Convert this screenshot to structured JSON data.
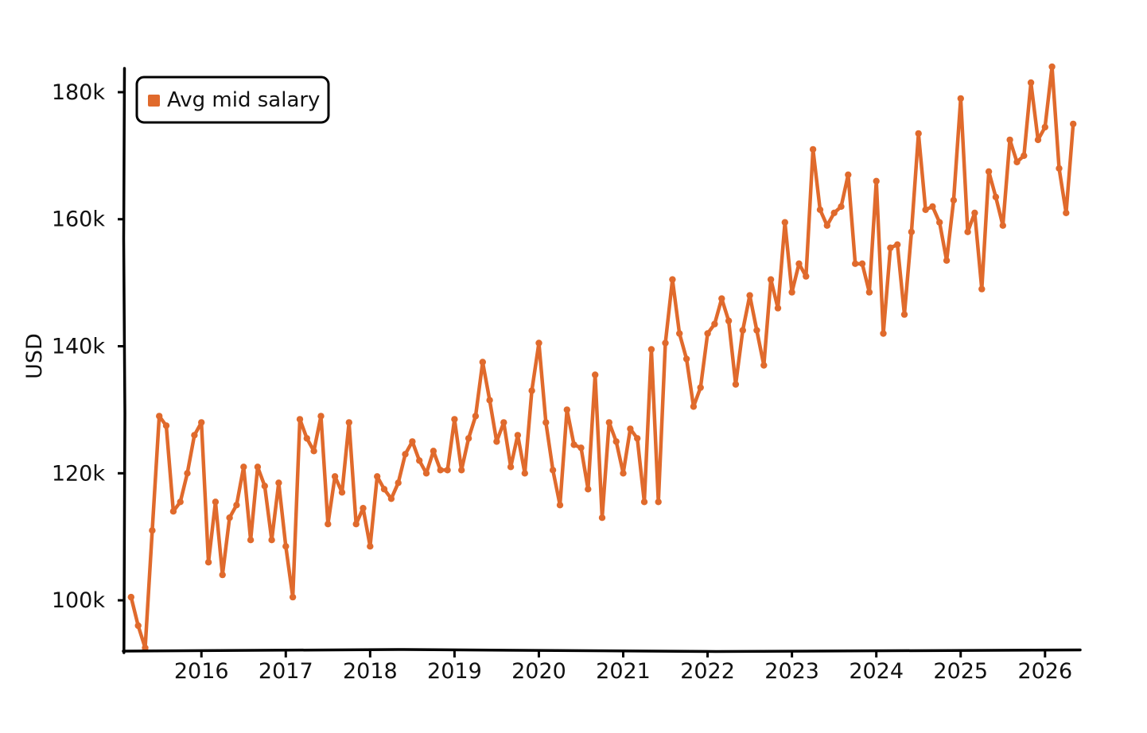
{
  "chart_data": {
    "type": "line",
    "title": "",
    "xlabel": "",
    "ylabel": "USD",
    "x_axis": {
      "type": "date",
      "range": [
        "2015-02",
        "2026-06"
      ],
      "tick_values": [
        "2016-01",
        "2017-01",
        "2018-01",
        "2019-01",
        "2020-01",
        "2021-01",
        "2022-01",
        "2023-01",
        "2024-01",
        "2025-01",
        "2026-01"
      ],
      "tick_labels": [
        "2016",
        "2017",
        "2018",
        "2019",
        "2020",
        "2021",
        "2022",
        "2023",
        "2024",
        "2025",
        "2026"
      ]
    },
    "y_axis": {
      "range": [
        92000,
        184000
      ],
      "tick_values": [
        100000,
        120000,
        140000,
        160000,
        180000
      ],
      "tick_labels": [
        "100k",
        "120k",
        "140k",
        "160k",
        "180k"
      ]
    },
    "grid": false,
    "legend": {
      "placement": "top-left",
      "entries": [
        "Avg mid salary"
      ]
    },
    "series": [
      {
        "name": "Avg mid salary",
        "color": "#e06a2c",
        "x": [
          "2015-03",
          "2015-04",
          "2015-05",
          "2015-06",
          "2015-07",
          "2015-08",
          "2015-09",
          "2015-10",
          "2015-11",
          "2015-12",
          "2016-01",
          "2016-02",
          "2016-03",
          "2016-04",
          "2016-05",
          "2016-06",
          "2016-07",
          "2016-08",
          "2016-09",
          "2016-10",
          "2016-11",
          "2016-12",
          "2017-01",
          "2017-02",
          "2017-03",
          "2017-04",
          "2017-05",
          "2017-06",
          "2017-07",
          "2017-08",
          "2017-09",
          "2017-10",
          "2017-11",
          "2017-12",
          "2018-01",
          "2018-02",
          "2018-03",
          "2018-04",
          "2018-05",
          "2018-06",
          "2018-07",
          "2018-08",
          "2018-09",
          "2018-10",
          "2018-11",
          "2018-12",
          "2019-01",
          "2019-02",
          "2019-03",
          "2019-04",
          "2019-05",
          "2019-06",
          "2019-07",
          "2019-08",
          "2019-09",
          "2019-10",
          "2019-11",
          "2019-12",
          "2020-01",
          "2020-02",
          "2020-03",
          "2020-04",
          "2020-05",
          "2020-06",
          "2020-07",
          "2020-08",
          "2020-09",
          "2020-10",
          "2020-11",
          "2020-12",
          "2021-01",
          "2021-02",
          "2021-03",
          "2021-04",
          "2021-05",
          "2021-06",
          "2021-07",
          "2021-08",
          "2021-09",
          "2021-10",
          "2021-11",
          "2021-12",
          "2022-01",
          "2022-02",
          "2022-03",
          "2022-04",
          "2022-05",
          "2022-06",
          "2022-07",
          "2022-08",
          "2022-09",
          "2022-10",
          "2022-11",
          "2022-12",
          "2023-01",
          "2023-02",
          "2023-03",
          "2023-04",
          "2023-05",
          "2023-06",
          "2023-07",
          "2023-08",
          "2023-09",
          "2023-10",
          "2023-11",
          "2023-12",
          "2024-01",
          "2024-02",
          "2024-03",
          "2024-04",
          "2024-05",
          "2024-06",
          "2024-07",
          "2024-08",
          "2024-09",
          "2024-10",
          "2024-11",
          "2024-12",
          "2025-01",
          "2025-02",
          "2025-03",
          "2025-04",
          "2025-05",
          "2025-06",
          "2025-07",
          "2025-08",
          "2025-09",
          "2025-10",
          "2025-11",
          "2025-12",
          "2026-01",
          "2026-02",
          "2026-03",
          "2026-04",
          "2026-05"
        ],
        "values": [
          100500,
          96000,
          92500,
          111000,
          129000,
          127500,
          114000,
          115500,
          120000,
          126000,
          128000,
          106000,
          115500,
          104000,
          113000,
          115000,
          121000,
          109500,
          121000,
          118000,
          109500,
          118500,
          108500,
          100500,
          128500,
          125500,
          123500,
          129000,
          112000,
          119500,
          117000,
          128000,
          112000,
          114500,
          108500,
          119500,
          117500,
          116000,
          118500,
          123000,
          125000,
          122000,
          120000,
          123500,
          120500,
          120500,
          128500,
          120500,
          125500,
          129000,
          137500,
          131500,
          125000,
          128000,
          121000,
          126000,
          120000,
          133000,
          140500,
          128000,
          120500,
          115000,
          130000,
          124500,
          124000,
          117500,
          135500,
          113000,
          128000,
          125000,
          120000,
          127000,
          125500,
          115500,
          139500,
          115500,
          140500,
          150500,
          142000,
          138000,
          130500,
          133500,
          142000,
          143500,
          147500,
          144000,
          134000,
          142500,
          148000,
          142500,
          137000,
          150500,
          146000,
          159500,
          148500,
          153000,
          151000,
          171000,
          161500,
          159000,
          161000,
          162000,
          167000,
          153000,
          153000,
          148500,
          166000,
          142000,
          155500,
          156000,
          145000,
          158000,
          173500,
          161500,
          162000,
          159500,
          153500,
          163000,
          179000,
          158000,
          161000,
          149000,
          167500,
          163500,
          159000,
          172500,
          169000,
          170000,
          181500,
          172500,
          174500,
          184000,
          168000,
          161000,
          175000
        ]
      }
    ]
  }
}
